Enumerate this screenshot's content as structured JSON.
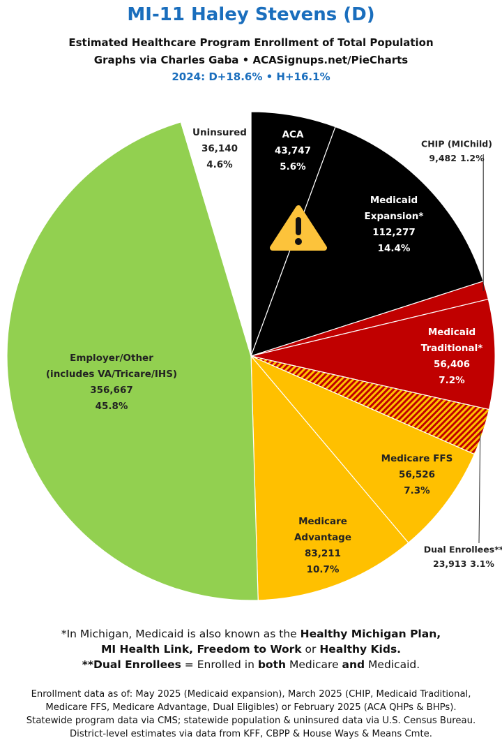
{
  "chart_data": {
    "type": "pie",
    "title": "MI-11 Haley Stevens (D)",
    "subtitle": [
      "Estimated Healthcare Program Enrollment of Total Population",
      "Graphs via Charles Gaba  •  ACASignups.net/PieCharts"
    ],
    "lean": "2024: D+18.6% • H+16.1%",
    "slices": [
      {
        "label_lines": [
          "ACA"
        ],
        "value": 43747,
        "value_label": "43,747",
        "percent": 5.6,
        "percent_label": "5.6%",
        "color": "#000000"
      },
      {
        "label_lines": [
          "Medicaid",
          "Expansion*"
        ],
        "value": 112277,
        "value_label": "112,277",
        "percent": 14.4,
        "percent_label": "14.4%",
        "color": "#000000"
      },
      {
        "label_lines": [
          "CHIP (MIChild)"
        ],
        "value": 9482,
        "value_label": "9,482",
        "percent": 1.2,
        "percent_label": "1.2%",
        "color": "#c00000"
      },
      {
        "label_lines": [
          "Medicaid",
          "Traditional*"
        ],
        "value": 56406,
        "value_label": "56,406",
        "percent": 7.2,
        "percent_label": "7.2%",
        "color": "#c00000"
      },
      {
        "label_lines": [
          "Dual Enrollees**"
        ],
        "value": 23913,
        "value_label": "23,913",
        "percent": 3.1,
        "percent_label": "3.1%",
        "color": "#c00000",
        "hatch_color": "#ffc000"
      },
      {
        "label_lines": [
          "Medicare FFS"
        ],
        "value": 56526,
        "value_label": "56,526",
        "percent": 7.3,
        "percent_label": "7.3%",
        "color": "#ffc000"
      },
      {
        "label_lines": [
          "Medicare",
          "Advantage"
        ],
        "value": 83211,
        "value_label": "83,211",
        "percent": 10.7,
        "percent_label": "10.7%",
        "color": "#ffc000"
      },
      {
        "label_lines": [
          "Employer/Other",
          "(includes VA/Tricare/IHS)"
        ],
        "value": 356667,
        "value_label": "356,667",
        "percent": 45.8,
        "percent_label": "45.8%",
        "color": "#92d050"
      },
      {
        "label_lines": [
          "Uninsured"
        ],
        "value": 36140,
        "value_label": "36,140",
        "percent": 4.6,
        "percent_label": "4.6%",
        "color": "#ffffff"
      }
    ]
  },
  "notes": [
    [
      {
        "text": "*In Michigan, Medicaid is also known as the ",
        "bold": false
      },
      {
        "text": "Healthy Michigan Plan,",
        "bold": true
      }
    ],
    [
      {
        "text": "MI Health Link, Freedom to Work",
        "bold": true
      },
      {
        "text": " or ",
        "bold": false
      },
      {
        "text": "Healthy Kids.",
        "bold": true
      }
    ],
    [
      {
        "text": "**Dual Enrollees",
        "bold": true
      },
      {
        "text": " = Enrolled in ",
        "bold": false
      },
      {
        "text": "both",
        "bold": true
      },
      {
        "text": " Medicare ",
        "bold": false
      },
      {
        "text": "and",
        "bold": true
      },
      {
        "text": " Medicaid.",
        "bold": false
      }
    ]
  ],
  "source": [
    "Enrollment data as of: May 2025 (Medicaid expansion), March 2025 (CHIP, Medicaid Traditional,",
    "Medicare FFS, Medicare Advantage, Dual Eligibles) or February 2025 (ACA QHPs & BHPs).",
    "Statewide program data via CMS; statewide population & uninsured data via U.S. Census Bureau.",
    "District-level estimates via data from KFF, CBPP & House Ways & Means Cmte."
  ]
}
